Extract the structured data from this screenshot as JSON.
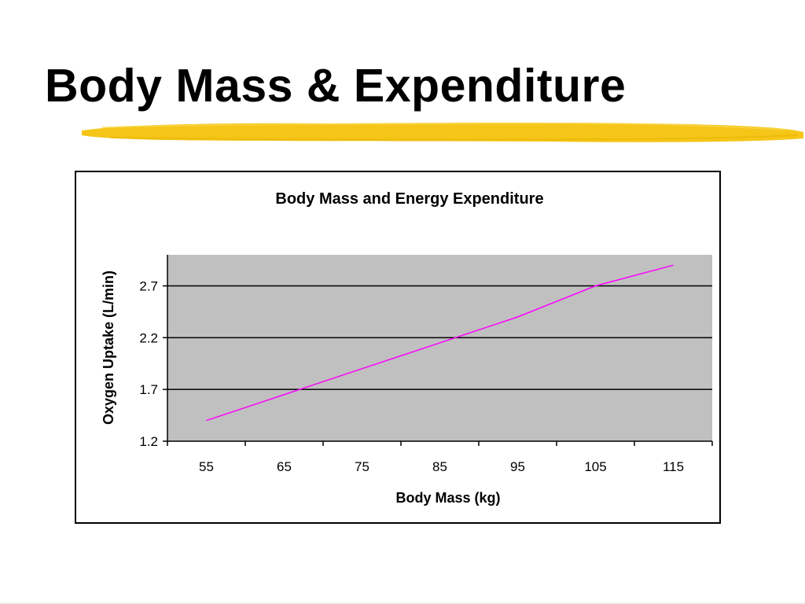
{
  "slide": {
    "title": "Body Mass & Expenditure",
    "highlight_color": "#f5c518"
  },
  "chart_data": {
    "type": "line",
    "title": "Body Mass and Energy Expenditure",
    "xlabel": "Body Mass (kg)",
    "ylabel": "Oxygen Uptake (L/min)",
    "categories": [
      "55",
      "65",
      "75",
      "85",
      "95",
      "105",
      "115"
    ],
    "series": [
      {
        "values": [
          1.4,
          1.65,
          1.9,
          2.15,
          2.4,
          2.7,
          2.9
        ],
        "color": "#ff00ff"
      }
    ],
    "y_ticks": [
      "1.2",
      "1.7",
      "2.2",
      "2.7"
    ],
    "ylim": [
      1.2,
      3.0
    ],
    "grid": true,
    "legend": "none",
    "plot_background": "#c0c0c0"
  }
}
